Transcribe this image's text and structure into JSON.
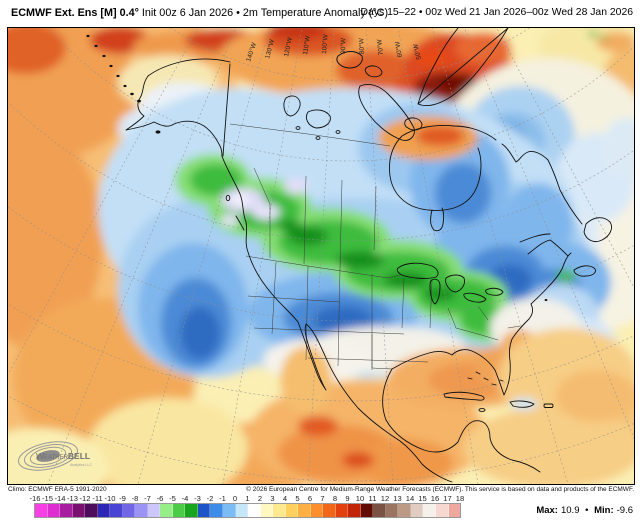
{
  "header": {
    "left_bold": "ECMWF Ext. Ens [M] 0.4°",
    "left_regular": "Init 00z 6 Jan 2026 • 2m Temperature Anomaly (°C)",
    "right": "Days 15–22 • 00z Wed 21 Jan 2026–00z Wed 28 Jan 2026"
  },
  "map": {
    "lon_labels": [
      "140°W",
      "130°W",
      "120°W",
      "110°W",
      "100°W",
      "90°W",
      "80°W",
      "70°W",
      "60°W",
      "50°W"
    ],
    "logo": {
      "brand_prefix": "Weather",
      "brand_suffix": "BELL",
      "subtext": "Analytics LLC"
    }
  },
  "footer": {
    "climo": "Climo: ECMWF ERA-5 1991-2020",
    "copyright": "© 2026 European Centre for Medium-Range Weather Forecasts (ECMWF). This service is based on data and products of the ECMWF.",
    "extremes": {
      "max_label": "Max:",
      "max_value": "10.9",
      "separator": "•",
      "min_label": "Min:",
      "min_value": "-9.6"
    }
  },
  "colorbar": {
    "unit": "°C",
    "ticks": [
      "-16",
      "-15",
      "-14",
      "-13",
      "-12",
      "-11",
      "-10",
      "-9",
      "-8",
      "-7",
      "-6",
      "-5",
      "-4",
      "-3",
      "-2",
      "-1",
      "0",
      "1",
      "2",
      "3",
      "4",
      "5",
      "6",
      "7",
      "8",
      "9",
      "10",
      "11",
      "12",
      "13",
      "14",
      "15",
      "16",
      "17",
      "18"
    ],
    "colors": [
      "#F640E6",
      "#DE2ED2",
      "#A81EA0",
      "#7A1070",
      "#4E0C5C",
      "#2C26B6",
      "#4A44D4",
      "#7066E6",
      "#9C94F4",
      "#CCC6FA",
      "#96EE88",
      "#4CCC46",
      "#18A41E",
      "#1C54C8",
      "#3F8CE8",
      "#7CBCF4",
      "#C6E6FA",
      "#FFFFFF",
      "#FFF8C0",
      "#FFE88E",
      "#FFD05E",
      "#FFB042",
      "#FC8E2C",
      "#F2661A",
      "#E2400E",
      "#C22608",
      "#600C02",
      "#7A5244",
      "#9A7460",
      "#BC9A86",
      "#E0CCC0",
      "#F6F0EB",
      "#F6D8D0",
      "#EEA89E"
    ]
  }
}
